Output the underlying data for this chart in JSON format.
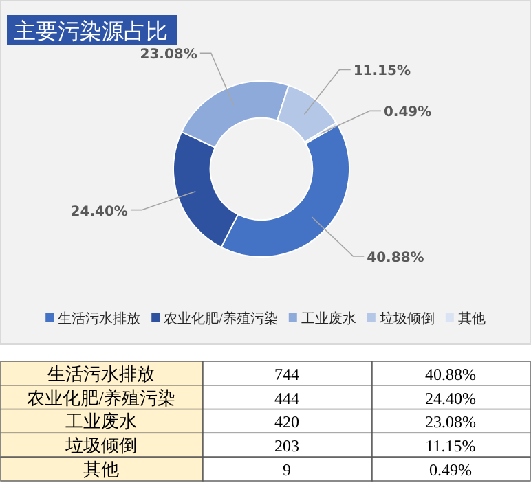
{
  "chart_data": {
    "type": "donut",
    "title": "主要污染源占比",
    "categories": [
      "生活污水排放",
      "农业化肥/养殖污染",
      "工业废水",
      "垃圾倾倒",
      "其他"
    ],
    "values": [
      40.88,
      24.4,
      23.08,
      11.15,
      0.49
    ],
    "annotations": [
      "744",
      "444",
      "420",
      "203",
      "9"
    ],
    "value_labels": [
      "40.88%",
      "24.40%",
      "23.08%",
      "11.15%",
      "0.49%"
    ],
    "colors": [
      "#4472c4",
      "#2f52a0",
      "#8eaadb",
      "#b4c7e7",
      "#dae3f3"
    ],
    "legend": "bottom"
  }
}
